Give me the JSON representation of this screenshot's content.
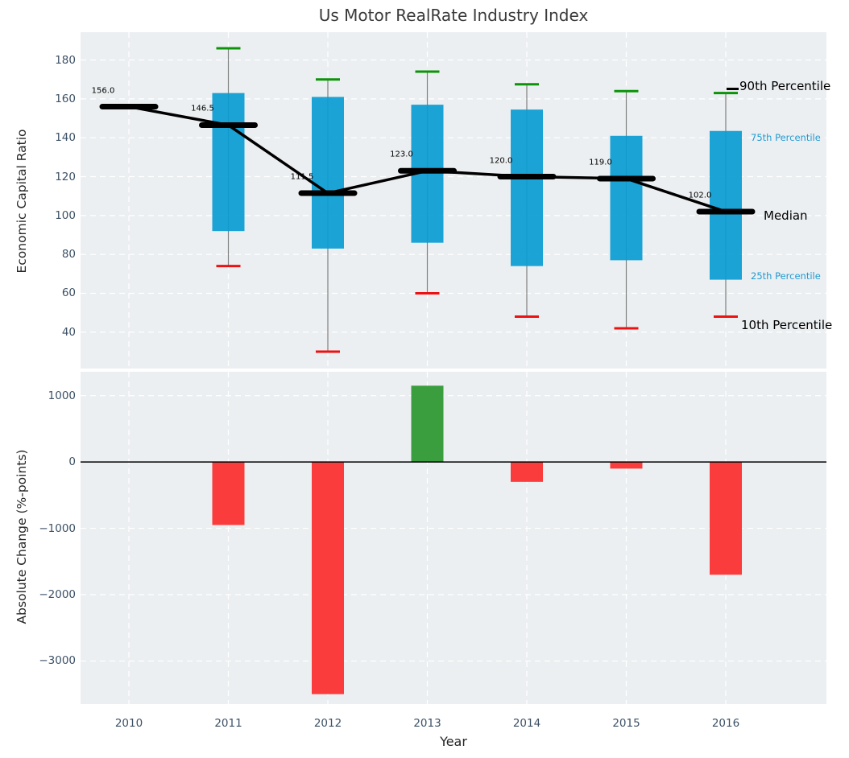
{
  "figure": {
    "title": "Us Motor RealRate Industry Index",
    "xlabel": "Year"
  },
  "colors": {
    "axes_background": "#eceff1",
    "grid": "#ffffff",
    "box_blue": "#0a9cd3",
    "whisker_gray": "#7f7f7f",
    "cap_green": "#0b9309",
    "cap_red": "#ee1111",
    "median_black": "#000000",
    "bar_green": "#3a9e3f",
    "bar_red": "#fa3c3c",
    "blue_label": "#1f9ad2",
    "black_label": "#000000",
    "tick_label": "#3d5166",
    "axis_label": "#262626",
    "title_color": "#3a3a3a"
  },
  "chart_data": [
    {
      "id": "percentile_chart",
      "type": "box-percentile",
      "title": "Us Motor RealRate Industry Index",
      "ylabel": "Economic Capital Ratio",
      "x": [
        2010,
        2011,
        2012,
        2013,
        2014,
        2015,
        2016
      ],
      "series": [
        {
          "name": "10th Percentile",
          "values": [
            null,
            74,
            30,
            60,
            48,
            42,
            48
          ]
        },
        {
          "name": "25th Percentile",
          "values": [
            null,
            92,
            83,
            86,
            74,
            77,
            67
          ]
        },
        {
          "name": "Median",
          "values": [
            156.0,
            146.5,
            111.5,
            123.0,
            120.0,
            119.0,
            102.0
          ]
        },
        {
          "name": "75th Percentile",
          "values": [
            null,
            163,
            161,
            157,
            154.5,
            141,
            143.5
          ]
        },
        {
          "name": "90th Percentile",
          "values": [
            null,
            186,
            170,
            174,
            167.5,
            164,
            163
          ]
        }
      ],
      "median_labels": [
        "156.0",
        "146.5",
        "111.5",
        "123.0",
        "120.0",
        "119.0",
        "102.0"
      ],
      "right_labels": [
        {
          "text": "90th Percentile",
          "style": "black_big"
        },
        {
          "text": "75th Percentile",
          "style": "blue_small"
        },
        {
          "text": "Median",
          "style": "black_big"
        },
        {
          "text": "25th Percentile",
          "style": "blue_small"
        },
        {
          "text": "10th Percentile",
          "style": "black_big"
        }
      ],
      "yticks": [
        40,
        60,
        80,
        100,
        120,
        140,
        160,
        180
      ],
      "ylim": [
        21.3,
        194.3
      ],
      "xlim": [
        2009.51,
        2017.01
      ],
      "grid": true,
      "legend_position": "right-annotations"
    },
    {
      "id": "change_chart",
      "type": "bar",
      "ylabel": "Absolute Change (%-points)",
      "xlabel": "Year",
      "categories": [
        2010,
        2011,
        2012,
        2013,
        2014,
        2015,
        2016
      ],
      "values": [
        0,
        -950,
        -3500,
        1150,
        -300,
        -100,
        -1700
      ],
      "yticks": [
        1000,
        0,
        -1000,
        -2000,
        -3000
      ],
      "ylim": [
        -3650,
        1360
      ],
      "grid": true,
      "zero_line": 0
    }
  ]
}
